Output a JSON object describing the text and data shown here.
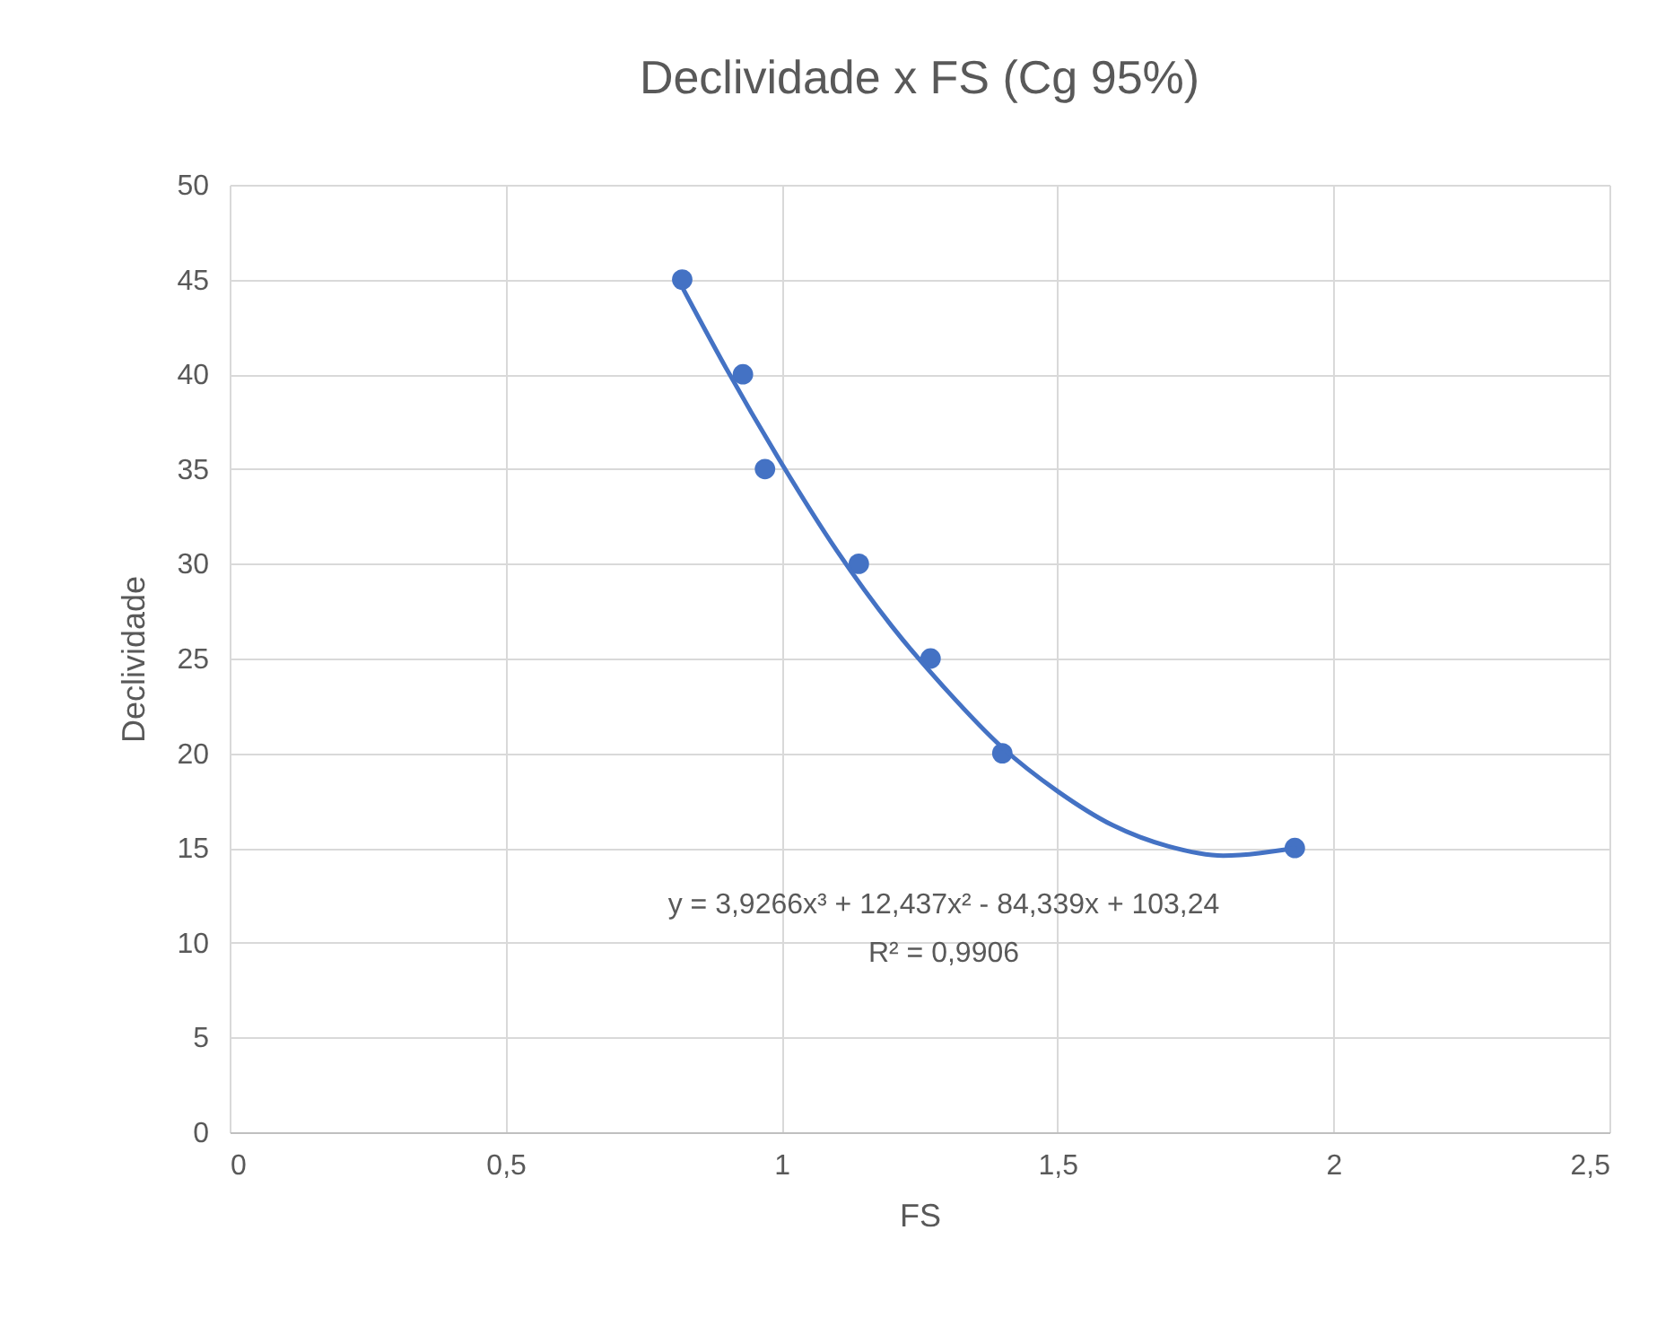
{
  "chart_data": {
    "type": "scatter",
    "title": "Declividade x FS (Cg 95%)",
    "xlabel": "FS",
    "ylabel": "Declividade",
    "xlim": [
      0,
      2.5
    ],
    "xticks": [
      0,
      {
        "value": 0.5,
        "label": "0,5"
      },
      1,
      {
        "value": 1.5,
        "label": "1,5"
      },
      2,
      {
        "value": 2.5,
        "label": "2,5"
      }
    ],
    "ylim": [
      0,
      50
    ],
    "yticks": [
      0,
      5,
      10,
      15,
      20,
      25,
      30,
      35,
      40,
      45,
      50
    ],
    "grid": true,
    "series": [
      {
        "marker": "circle",
        "color": "#4472c4",
        "x": [
          0.82,
          0.93,
          0.97,
          1.14,
          1.27,
          1.4,
          1.93
        ],
        "values": [
          45,
          40,
          35,
          30,
          25,
          20,
          15
        ]
      },
      {
        "type": "line",
        "marker": "none",
        "color": "#4472c4",
        "x": [
          0.82,
          0.9,
          1.0,
          1.1,
          1.2,
          1.3,
          1.4,
          1.5,
          1.6,
          1.7,
          1.8,
          1.93
        ],
        "values": [
          44.6,
          40.3,
          35.3,
          30.7,
          26.7,
          23.3,
          20.3,
          18.0,
          16.2,
          15.1,
          14.6,
          15.0
        ]
      }
    ],
    "annotations": [
      "y = 3,9266x³ + 12,437x² - 84,339x + 103,24",
      "R² = 0,9906"
    ]
  }
}
